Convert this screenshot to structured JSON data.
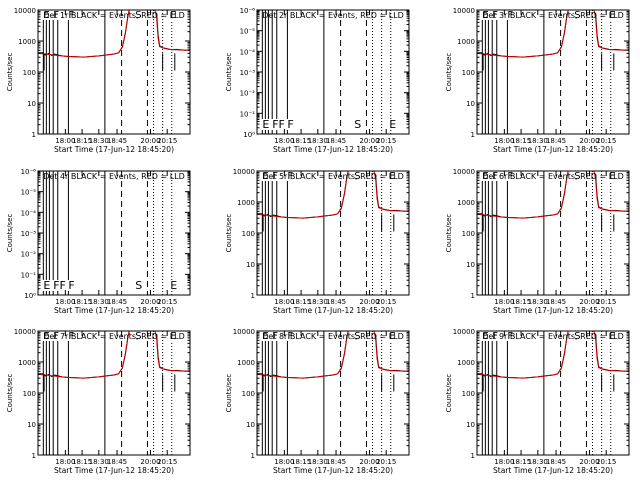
{
  "figure": {
    "background": "#ffffff"
  },
  "colors": {
    "events": "#000000",
    "lld": "#cc0000",
    "axis": "#000000"
  },
  "chart_data": [
    {
      "type": "line",
      "title": "Det 1r  BLACK = Events, RED = LLD",
      "xlabel": "Start Time (17-Jun-12 18:45:20)",
      "ylabel": "Counts/sec",
      "yscale": "log",
      "ylim": [
        1,
        10000
      ],
      "yticks": [
        "1",
        "10",
        "100",
        "1000",
        "10000"
      ],
      "xticks": [
        "18:00",
        "18:15",
        "18:30",
        "18:45",
        "20:00",
        "20:15"
      ],
      "markers": [
        {
          "label": "E",
          "x": 0.035
        },
        {
          "label": "F",
          "x": 0.1
        },
        {
          "label": "F",
          "x": 0.2
        },
        {
          "label": "S",
          "x": 0.64
        },
        {
          "label": "E",
          "x": 0.87
        }
      ],
      "has_data": true
    },
    {
      "type": "line",
      "title": "Det 2r  BLACK = Events, RED = LLD",
      "xlabel": "Start Time (17-Jun-12 18:45:20)",
      "ylabel": "Counts/sec",
      "yscale": "log",
      "ylim": [
        1,
        1e-06
      ],
      "yticks": [
        "10⁰",
        "10⁻¹",
        "10⁻²",
        "10⁻³",
        "10⁻⁴",
        "10⁻⁵",
        "10⁻⁶"
      ],
      "xticks": [
        "18:00",
        "18:15",
        "18:30",
        "18:45",
        "20:00",
        "20:15"
      ],
      "markers": [
        {
          "label": "E",
          "x": 0.035
        },
        {
          "label": "FF",
          "x": 0.1
        },
        {
          "label": "F",
          "x": 0.2
        },
        {
          "label": "S",
          "x": 0.64
        },
        {
          "label": "E",
          "x": 0.87
        }
      ],
      "has_data": false
    },
    {
      "type": "line",
      "title": "Det 3r  BLACK = Events, RED = LLD",
      "xlabel": "Start Time (17-Jun-12 18:45:20)",
      "ylabel": "Counts/sec",
      "yscale": "log",
      "ylim": [
        1,
        10000
      ],
      "yticks": [
        "1",
        "10",
        "100",
        "1000",
        "10000"
      ],
      "xticks": [
        "18:00",
        "18:15",
        "18:30",
        "18:45",
        "20:00",
        "20:15"
      ],
      "markers": [
        {
          "label": "E",
          "x": 0.035
        },
        {
          "label": "F",
          "x": 0.1
        },
        {
          "label": "F",
          "x": 0.2
        },
        {
          "label": "S",
          "x": 0.64
        },
        {
          "label": "E",
          "x": 0.87
        }
      ],
      "has_data": true
    },
    {
      "type": "line",
      "title": "Det 4r  BLACK = Events, RED = LLD",
      "xlabel": "Start Time (17-Jun-12 18:45:20)",
      "ylabel": "Counts/sec",
      "yscale": "log",
      "ylim": [
        1,
        1e-06
      ],
      "yticks": [
        "10⁰",
        "10⁻¹",
        "10⁻²",
        "10⁻³",
        "10⁻⁴",
        "10⁻⁵",
        "10⁻⁶"
      ],
      "xticks": [
        "18:00",
        "18:15",
        "18:30",
        "18:45",
        "20:00",
        "20:15"
      ],
      "markers": [
        {
          "label": "E",
          "x": 0.035
        },
        {
          "label": "FF",
          "x": 0.1
        },
        {
          "label": "F",
          "x": 0.2
        },
        {
          "label": "S",
          "x": 0.64
        },
        {
          "label": "E",
          "x": 0.87
        }
      ],
      "has_data": false
    },
    {
      "type": "line",
      "title": "Det 5r  BLACK = Events, RED = LLD",
      "xlabel": "Start Time (17-Jun-12 18:45:20)",
      "ylabel": "Counts/sec",
      "yscale": "log",
      "ylim": [
        1,
        10000
      ],
      "yticks": [
        "1",
        "10",
        "100",
        "1000",
        "10000"
      ],
      "xticks": [
        "18:00",
        "18:15",
        "18:30",
        "18:45",
        "20:00",
        "20:15"
      ],
      "markers": [
        {
          "label": "E",
          "x": 0.035
        },
        {
          "label": "F",
          "x": 0.1
        },
        {
          "label": "F",
          "x": 0.2
        },
        {
          "label": "S",
          "x": 0.64
        },
        {
          "label": "E",
          "x": 0.87
        }
      ],
      "has_data": true
    },
    {
      "type": "line",
      "title": "Det 6r  BLACK = Events, RED = LLD",
      "xlabel": "Start Time (17-Jun-12 18:45:20)",
      "ylabel": "Counts/sec",
      "yscale": "log",
      "ylim": [
        1,
        10000
      ],
      "yticks": [
        "1",
        "10",
        "100",
        "1000",
        "10000"
      ],
      "xticks": [
        "18:00",
        "18:15",
        "18:30",
        "18:45",
        "20:00",
        "20:15"
      ],
      "markers": [
        {
          "label": "E",
          "x": 0.035
        },
        {
          "label": "F",
          "x": 0.1
        },
        {
          "label": "F",
          "x": 0.2
        },
        {
          "label": "S",
          "x": 0.64
        },
        {
          "label": "E",
          "x": 0.87
        }
      ],
      "has_data": true
    },
    {
      "type": "line",
      "title": "Det 7r  BLACK = Events, RED = LLD",
      "xlabel": "Start Time (17-Jun-12 18:45:20)",
      "ylabel": "Counts/sec",
      "yscale": "log",
      "ylim": [
        1,
        10000
      ],
      "yticks": [
        "1",
        "10",
        "100",
        "1000",
        "10000"
      ],
      "xticks": [
        "18:00",
        "18:15",
        "18:30",
        "18:45",
        "20:00",
        "20:15"
      ],
      "markers": [
        {
          "label": "E",
          "x": 0.035
        },
        {
          "label": "F",
          "x": 0.1
        },
        {
          "label": "F",
          "x": 0.2
        },
        {
          "label": "S",
          "x": 0.64
        },
        {
          "label": "E",
          "x": 0.87
        }
      ],
      "has_data": true
    },
    {
      "type": "line",
      "title": "Det 8r  BLACK = Events, RED = LLD",
      "xlabel": "Start Time (17-Jun-12 18:45:20)",
      "ylabel": "Counts/sec",
      "yscale": "log",
      "ylim": [
        1,
        10000
      ],
      "yticks": [
        "1",
        "10",
        "100",
        "1000",
        "10000"
      ],
      "xticks": [
        "18:00",
        "18:15",
        "18:30",
        "18:45",
        "20:00",
        "20:15"
      ],
      "markers": [
        {
          "label": "E",
          "x": 0.035
        },
        {
          "label": "F",
          "x": 0.1
        },
        {
          "label": "F",
          "x": 0.2
        },
        {
          "label": "S",
          "x": 0.64
        },
        {
          "label": "E",
          "x": 0.87
        }
      ],
      "has_data": true
    },
    {
      "type": "line",
      "title": "Det 9r  BLACK = Events, RED = LLD",
      "xlabel": "Start Time (17-Jun-12 18:45:20)",
      "ylabel": "Counts/sec",
      "yscale": "log",
      "ylim": [
        1,
        10000
      ],
      "yticks": [
        "1",
        "10",
        "100",
        "1000",
        "10000"
      ],
      "xticks": [
        "18:00",
        "18:15",
        "18:30",
        "18:45",
        "20:00",
        "20:15"
      ],
      "markers": [
        {
          "label": "E",
          "x": 0.035
        },
        {
          "label": "F",
          "x": 0.1
        },
        {
          "label": "F",
          "x": 0.2
        },
        {
          "label": "S",
          "x": 0.64
        },
        {
          "label": "E",
          "x": 0.87
        }
      ],
      "has_data": true
    }
  ]
}
